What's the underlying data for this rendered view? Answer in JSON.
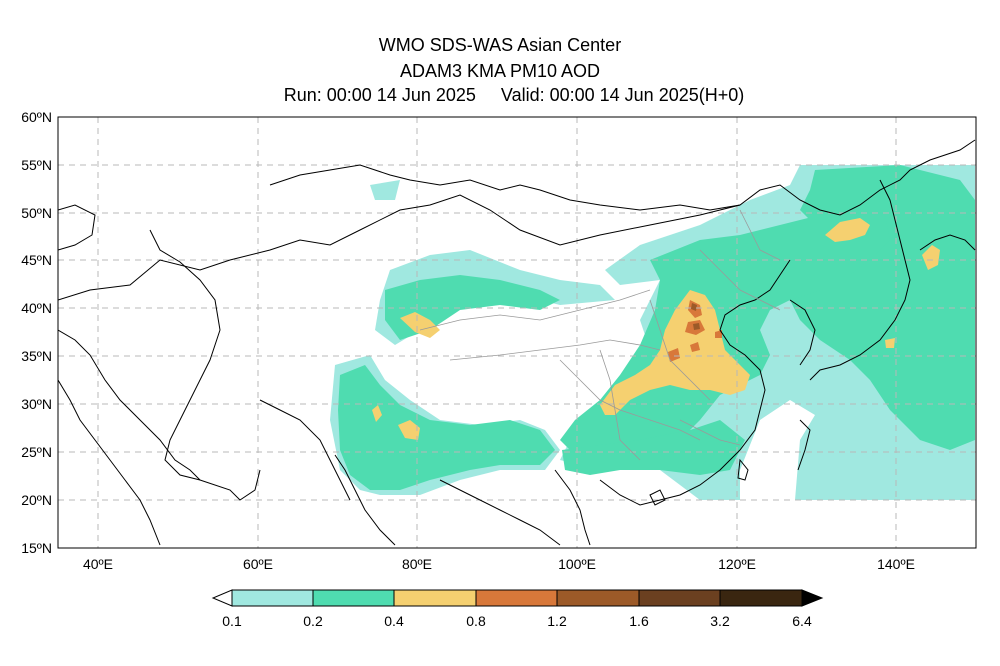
{
  "title": {
    "line1": "WMO SDS-WAS Asian Center",
    "line2": "ADAM3 KMA PM10 AOD",
    "run": "Run: 00:00 14 Jun 2025",
    "valid": "Valid: 00:00 14 Jun 2025(H+0)"
  },
  "map": {
    "lon_range": [
      35,
      150
    ],
    "lat_range": [
      15,
      60
    ],
    "lat_labels": [
      "60ºN",
      "55ºN",
      "50ºN",
      "45ºN",
      "40ºN",
      "35ºN",
      "30ºN",
      "25ºN",
      "20ºN",
      "15ºN"
    ],
    "lon_labels": [
      "40ºE",
      "60ºE",
      "80ºE",
      "100ºE",
      "120ºE",
      "140ºE"
    ],
    "gridlines": true
  },
  "colorbar": {
    "labels": [
      "0.1",
      "0.2",
      "0.4",
      "0.8",
      "1.2",
      "1.6",
      "3.2",
      "6.4"
    ],
    "colors": [
      "#a0e8e0",
      "#4fdcb0",
      "#f5d070",
      "#d8783a",
      "#9c5a28",
      "#6b4020",
      "#3a2610"
    ]
  }
}
